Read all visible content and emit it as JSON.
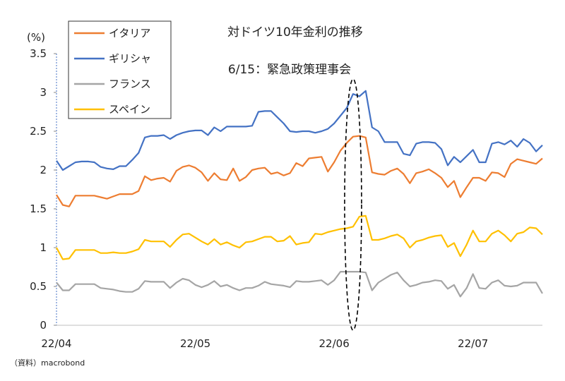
{
  "chart_data": {
    "type": "line",
    "title": "対ドイツ10年金利の推移",
    "ylabel": "(%)",
    "ylim": [
      0,
      3.5
    ],
    "yticks": [
      0,
      0.5,
      1,
      1.5,
      2,
      2.5,
      3,
      3.5
    ],
    "ytick_labels": [
      "0",
      "0.5",
      "1",
      "1.5",
      "2",
      "2.5",
      "3",
      "3.5"
    ],
    "x_tick_labels": [
      "22/04",
      "22/05",
      "22/06",
      "22/07"
    ],
    "x_tick_positions": [
      0,
      22,
      44,
      66
    ],
    "annotation": "6/15：緊急政策理事会",
    "annotation_x": 47,
    "legend_position": "top-left",
    "grid": false,
    "source": "（資料）macrobond",
    "series": [
      {
        "name": "イタリア",
        "color": "#ED7D31",
        "values": [
          1.68,
          1.55,
          1.53,
          1.67,
          1.67,
          1.67,
          1.67,
          1.65,
          1.63,
          1.66,
          1.69,
          1.69,
          1.69,
          1.73,
          1.92,
          1.87,
          1.89,
          1.9,
          1.85,
          1.99,
          2.04,
          2.06,
          2.03,
          1.97,
          1.86,
          1.96,
          1.88,
          1.87,
          2.02,
          1.86,
          1.91,
          2.0,
          2.02,
          2.03,
          1.95,
          1.97,
          1.93,
          1.96,
          2.09,
          2.05,
          2.15,
          2.16,
          2.17,
          1.98,
          2.1,
          2.25,
          2.35,
          2.43,
          2.44,
          2.42,
          1.97,
          1.95,
          1.94,
          1.99,
          2.02,
          1.95,
          1.83,
          1.96,
          1.98,
          2.01,
          1.96,
          1.9,
          1.78,
          1.86,
          1.65,
          1.78,
          1.9,
          1.9,
          1.86,
          1.97,
          1.96,
          1.91,
          2.08,
          2.14,
          2.12,
          2.1,
          2.08,
          2.15
        ]
      },
      {
        "name": "ギリシャ",
        "color": "#4472C4",
        "values": [
          2.12,
          2.0,
          2.05,
          2.1,
          2.11,
          2.11,
          2.1,
          2.04,
          2.02,
          2.01,
          2.05,
          2.05,
          2.13,
          2.22,
          2.42,
          2.44,
          2.44,
          2.45,
          2.4,
          2.45,
          2.48,
          2.5,
          2.51,
          2.51,
          2.45,
          2.55,
          2.5,
          2.56,
          2.56,
          2.56,
          2.56,
          2.57,
          2.75,
          2.76,
          2.76,
          2.68,
          2.6,
          2.5,
          2.49,
          2.5,
          2.5,
          2.48,
          2.5,
          2.53,
          2.6,
          2.7,
          2.8,
          2.98,
          2.95,
          3.02,
          2.55,
          2.5,
          2.36,
          2.36,
          2.36,
          2.21,
          2.19,
          2.34,
          2.36,
          2.36,
          2.35,
          2.27,
          2.06,
          2.17,
          2.1,
          2.18,
          2.26,
          2.1,
          2.1,
          2.34,
          2.36,
          2.33,
          2.38,
          2.3,
          2.4,
          2.35,
          2.24,
          2.32
        ]
      },
      {
        "name": "フランス",
        "color": "#A5A5A5",
        "values": [
          0.55,
          0.45,
          0.45,
          0.53,
          0.53,
          0.53,
          0.53,
          0.48,
          0.47,
          0.46,
          0.44,
          0.43,
          0.43,
          0.47,
          0.57,
          0.56,
          0.56,
          0.56,
          0.48,
          0.55,
          0.6,
          0.58,
          0.52,
          0.49,
          0.52,
          0.57,
          0.5,
          0.52,
          0.48,
          0.45,
          0.48,
          0.48,
          0.51,
          0.56,
          0.53,
          0.52,
          0.51,
          0.49,
          0.57,
          0.56,
          0.56,
          0.57,
          0.58,
          0.52,
          0.58,
          0.69,
          0.69,
          0.69,
          0.69,
          0.68,
          0.45,
          0.55,
          0.6,
          0.65,
          0.68,
          0.58,
          0.5,
          0.52,
          0.55,
          0.56,
          0.58,
          0.57,
          0.47,
          0.52,
          0.37,
          0.48,
          0.66,
          0.48,
          0.47,
          0.55,
          0.58,
          0.51,
          0.5,
          0.51,
          0.55,
          0.55,
          0.55,
          0.41
        ]
      },
      {
        "name": "スペイン",
        "color": "#FFC000",
        "values": [
          1.0,
          0.85,
          0.86,
          0.97,
          0.97,
          0.97,
          0.97,
          0.93,
          0.93,
          0.94,
          0.93,
          0.93,
          0.95,
          0.98,
          1.1,
          1.08,
          1.08,
          1.08,
          1.01,
          1.1,
          1.17,
          1.18,
          1.13,
          1.08,
          1.04,
          1.11,
          1.04,
          1.07,
          1.03,
          1.0,
          1.07,
          1.08,
          1.11,
          1.14,
          1.14,
          1.08,
          1.09,
          1.15,
          1.04,
          1.06,
          1.07,
          1.18,
          1.17,
          1.2,
          1.22,
          1.24,
          1.25,
          1.27,
          1.4,
          1.41,
          1.1,
          1.1,
          1.12,
          1.15,
          1.17,
          1.12,
          1.0,
          1.08,
          1.1,
          1.13,
          1.15,
          1.16,
          1.01,
          1.06,
          0.89,
          1.04,
          1.22,
          1.08,
          1.08,
          1.18,
          1.22,
          1.16,
          1.08,
          1.18,
          1.2,
          1.26,
          1.25,
          1.17
        ]
      }
    ]
  }
}
